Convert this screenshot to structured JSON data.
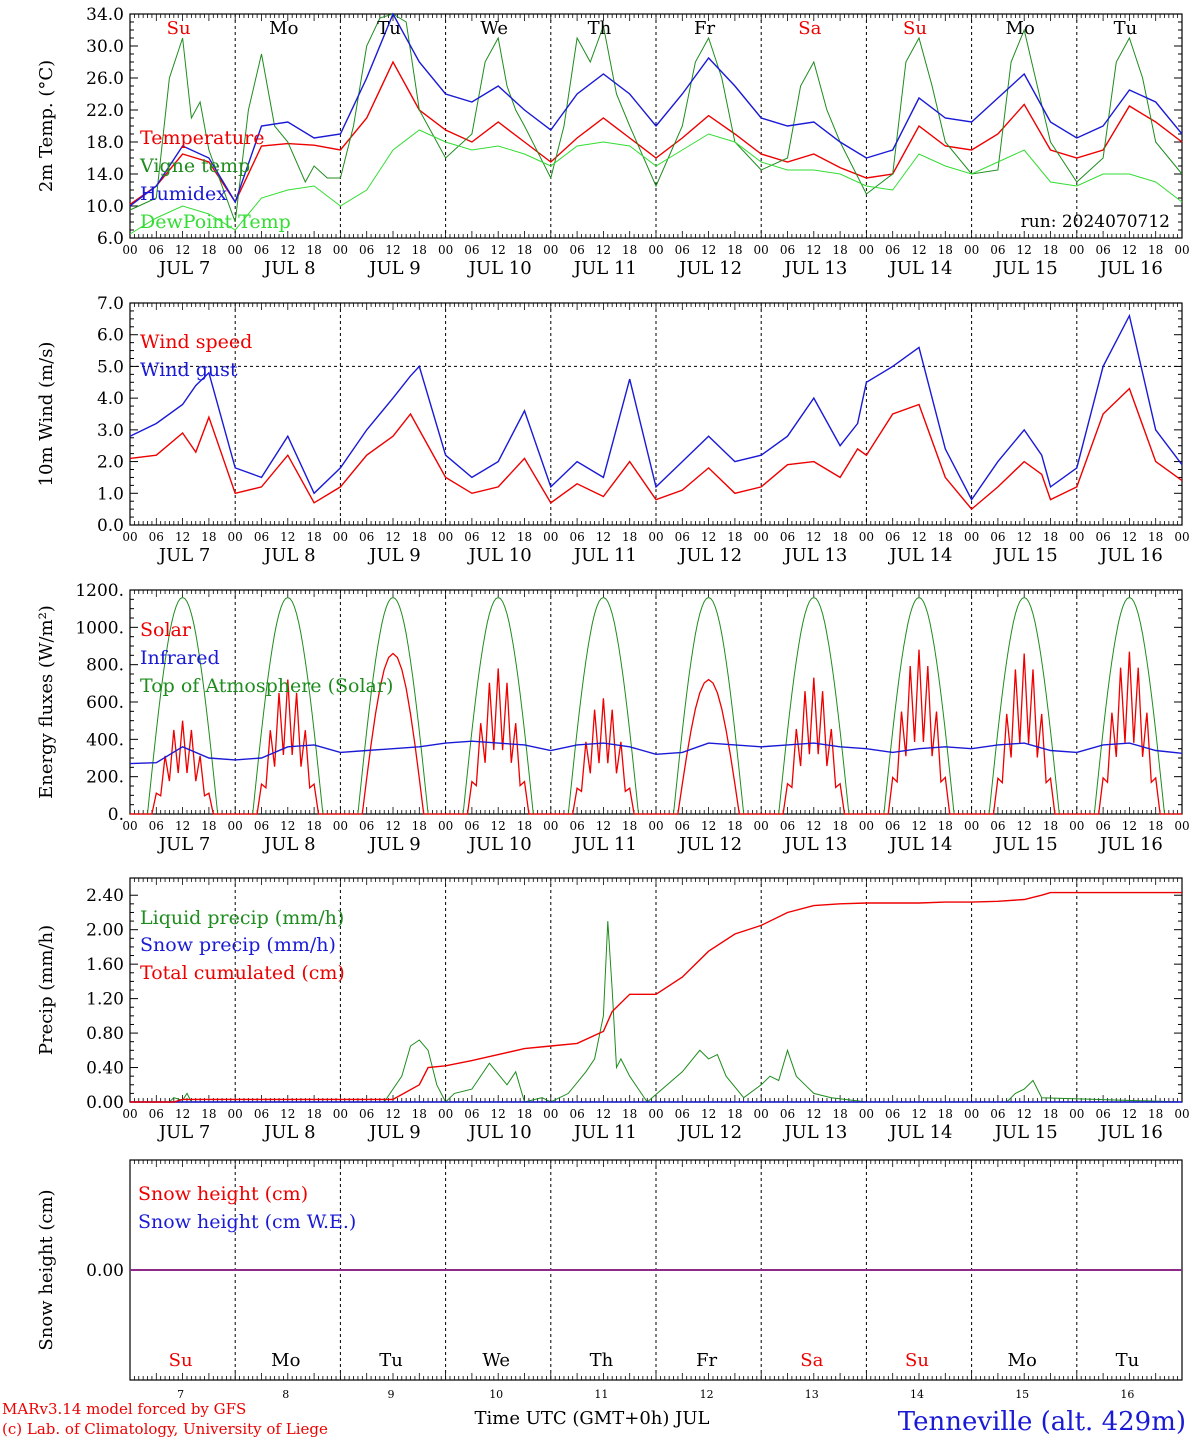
{
  "colors": {
    "red": "#ee0000",
    "darkgreen": "#1e8c1e",
    "blue": "#1a1ad6",
    "lightgreen": "#33dd33",
    "purple": "#8c2a8c",
    "black": "#000000"
  },
  "day_letters": [
    "Su",
    "Mo",
    "Tu",
    "We",
    "Th",
    "Fr",
    "Sa",
    "Su",
    "Mo",
    "Tu"
  ],
  "weekend_flags": [
    true,
    false,
    false,
    false,
    false,
    false,
    true,
    true,
    false,
    false
  ],
  "date_labels": [
    "JUL 7",
    "JUL 8",
    "JUL 9",
    "JUL 10",
    "JUL 11",
    "JUL 12",
    "JUL 13",
    "JUL 14",
    "JUL 15",
    "JUL 16"
  ],
  "hour_labels": [
    "00",
    "06",
    "12",
    "18"
  ],
  "day_numbers": [
    "7",
    "8",
    "9",
    "10",
    "11",
    "12",
    "13",
    "14",
    "15",
    "16"
  ],
  "footer": {
    "credit_line1": "MARv3.14 model forced by GFS",
    "credit_line2": "(c) Lab. of Climatology, University of Liege",
    "xlabel": "Time UTC (GMT+0h) JUL",
    "station": "Tenneville (alt. 429m)"
  },
  "chart_data": [
    {
      "type": "line",
      "ylabel": "2m Temp. (°C)",
      "ylim": [
        6,
        34
      ],
      "yticks": [
        "34.0",
        "30.0",
        "26.0",
        "22.0",
        "18.0",
        "14.0",
        "10.0",
        "6.0"
      ],
      "run_label": "run: 2024070712",
      "legend": [
        "Temperature",
        "Vigne temp",
        "Humidex",
        "DewPoint Temp"
      ],
      "x_unit": "hours since JUL 7 00 UTC",
      "series": [
        {
          "name": "Temperature",
          "color": "red",
          "x": [
            0,
            6,
            12,
            18,
            24,
            30,
            36,
            42,
            48,
            54,
            60,
            66,
            72,
            78,
            84,
            90,
            96,
            102,
            108,
            114,
            120,
            126,
            132,
            138,
            144,
            150,
            156,
            162,
            168,
            174,
            180,
            186,
            192,
            198,
            204,
            210,
            216,
            222,
            228,
            234,
            240
          ],
          "y": [
            10.2,
            12.5,
            16.5,
            15.5,
            10.5,
            17.5,
            17.8,
            17.6,
            17.0,
            21.0,
            28.0,
            22.0,
            19.5,
            18.0,
            20.5,
            18.0,
            15.5,
            18.5,
            21.0,
            18.5,
            16.0,
            18.5,
            21.3,
            19.0,
            16.5,
            15.5,
            16.5,
            14.8,
            13.5,
            14.0,
            20.0,
            17.5,
            17.0,
            19.0,
            22.7,
            17.0,
            16.0,
            17.0,
            22.5,
            20.5,
            18.0
          ]
        },
        {
          "name": "Vigne temp",
          "color": "darkgreen",
          "x": [
            0,
            6,
            9,
            12,
            14,
            16,
            18,
            24,
            27,
            30,
            33,
            36,
            40,
            42,
            45,
            48,
            51,
            54,
            57,
            60,
            63,
            66,
            72,
            78,
            81,
            84,
            86,
            88,
            90,
            96,
            99,
            102,
            105,
            108,
            111,
            114,
            120,
            126,
            129,
            132,
            135,
            138,
            144,
            150,
            153,
            156,
            159,
            162,
            168,
            174,
            177,
            180,
            183,
            186,
            192,
            198,
            201,
            204,
            207,
            210,
            216,
            222,
            225,
            228,
            231,
            234,
            240
          ],
          "y": [
            9.5,
            11.0,
            26.0,
            31.0,
            21.0,
            23.0,
            17.0,
            8.0,
            22.0,
            29.0,
            20.0,
            18.0,
            13.0,
            15.0,
            13.5,
            13.5,
            20.0,
            30.0,
            33.5,
            34.0,
            33.0,
            22.0,
            16.0,
            19.0,
            28.0,
            31.0,
            25.0,
            22.0,
            20.0,
            13.5,
            20.0,
            31.0,
            28.0,
            32.5,
            24.0,
            20.0,
            12.5,
            20.0,
            28.0,
            31.0,
            26.0,
            18.0,
            14.5,
            16.0,
            25.0,
            28.0,
            22.0,
            18.0,
            11.5,
            14.0,
            28.0,
            31.0,
            25.0,
            18.0,
            14.0,
            14.5,
            28.0,
            32.0,
            25.0,
            18.0,
            13.0,
            16.0,
            28.0,
            31.0,
            26.0,
            18.0,
            14.0
          ]
        },
        {
          "name": "Humidex",
          "color": "blue",
          "x": [
            0,
            6,
            12,
            18,
            24,
            30,
            36,
            42,
            48,
            54,
            60,
            66,
            72,
            78,
            84,
            90,
            96,
            102,
            108,
            114,
            120,
            126,
            132,
            138,
            144,
            150,
            156,
            162,
            168,
            174,
            180,
            186,
            192,
            198,
            204,
            210,
            216,
            222,
            228,
            234,
            240
          ],
          "y": [
            10.0,
            12.5,
            17.5,
            16.0,
            10.5,
            20.0,
            20.5,
            18.5,
            19.0,
            26.0,
            34.0,
            28.0,
            24.0,
            23.0,
            25.0,
            22.0,
            19.5,
            24.0,
            26.5,
            24.0,
            20.0,
            24.0,
            28.5,
            25.0,
            21.0,
            20.0,
            20.5,
            18.0,
            16.0,
            17.0,
            23.5,
            21.0,
            20.5,
            23.5,
            26.5,
            20.5,
            18.5,
            20.0,
            24.5,
            23.0,
            19.0
          ]
        },
        {
          "name": "DewPoint Temp",
          "color": "lightgreen",
          "x": [
            0,
            6,
            12,
            18,
            24,
            30,
            36,
            42,
            48,
            54,
            60,
            66,
            72,
            78,
            84,
            90,
            96,
            102,
            108,
            114,
            120,
            126,
            132,
            138,
            144,
            150,
            156,
            162,
            168,
            174,
            180,
            186,
            192,
            198,
            204,
            210,
            216,
            222,
            228,
            234,
            240
          ],
          "y": [
            6.5,
            8.5,
            10.0,
            9.0,
            7.0,
            11.0,
            12.0,
            12.5,
            10.0,
            12.0,
            17.0,
            19.5,
            18.0,
            17.0,
            17.5,
            16.5,
            15.0,
            17.5,
            18.0,
            17.5,
            15.0,
            17.0,
            19.0,
            18.0,
            15.5,
            14.5,
            14.5,
            14.0,
            12.5,
            12.0,
            16.5,
            15.0,
            14.0,
            15.5,
            17.0,
            13.0,
            12.5,
            14.0,
            14.0,
            13.0,
            10.5
          ]
        }
      ]
    },
    {
      "type": "line",
      "ylabel": "10m Wind (m/s)",
      "ylim": [
        0,
        7
      ],
      "yticks": [
        "7.0",
        "6.0",
        "5.0",
        "4.0",
        "3.0",
        "2.0",
        "1.0",
        "0.0"
      ],
      "ref_line": 5,
      "legend": [
        "Wind speed",
        "Wind gust"
      ],
      "x_unit": "hours since JUL 7 00 UTC",
      "series": [
        {
          "name": "Wind speed",
          "color": "red",
          "x": [
            0,
            6,
            12,
            15,
            18,
            24,
            30,
            36,
            42,
            48,
            54,
            60,
            64,
            66,
            72,
            78,
            84,
            90,
            96,
            102,
            108,
            114,
            120,
            126,
            132,
            138,
            144,
            150,
            156,
            162,
            166,
            168,
            174,
            180,
            186,
            192,
            198,
            204,
            208,
            210,
            216,
            222,
            228,
            234,
            240
          ],
          "y": [
            2.1,
            2.2,
            2.9,
            2.3,
            3.4,
            1.0,
            1.2,
            2.2,
            0.7,
            1.2,
            2.2,
            2.8,
            3.5,
            3.0,
            1.5,
            1.0,
            1.2,
            2.1,
            0.7,
            1.3,
            0.9,
            2.0,
            0.8,
            1.1,
            1.8,
            1.0,
            1.2,
            1.9,
            2.0,
            1.5,
            2.4,
            2.2,
            3.5,
            3.8,
            1.5,
            0.5,
            1.2,
            2.0,
            1.6,
            0.8,
            1.2,
            3.5,
            4.3,
            2.0,
            1.4
          ]
        },
        {
          "name": "Wind gust",
          "color": "blue",
          "x": [
            0,
            6,
            12,
            15,
            18,
            24,
            30,
            36,
            42,
            48,
            54,
            60,
            64,
            66,
            72,
            78,
            84,
            90,
            96,
            102,
            108,
            114,
            120,
            126,
            132,
            138,
            144,
            150,
            156,
            162,
            166,
            168,
            174,
            180,
            186,
            192,
            198,
            204,
            208,
            210,
            216,
            222,
            228,
            234,
            240
          ],
          "y": [
            2.8,
            3.2,
            3.8,
            4.4,
            4.8,
            1.8,
            1.5,
            2.8,
            1.0,
            1.8,
            3.0,
            4.0,
            4.7,
            5.0,
            2.2,
            1.5,
            2.0,
            3.6,
            1.2,
            2.0,
            1.5,
            4.6,
            1.2,
            2.0,
            2.8,
            2.0,
            2.2,
            2.8,
            4.0,
            2.5,
            3.2,
            4.5,
            5.0,
            5.6,
            2.4,
            0.8,
            2.0,
            3.0,
            2.2,
            1.2,
            1.8,
            5.0,
            6.6,
            3.0,
            1.9
          ]
        }
      ]
    },
    {
      "type": "line",
      "ylabel": "Energy fluxes (W/m²)",
      "ylim": [
        0,
        1200
      ],
      "yticks": [
        "1200.",
        "1000.",
        "800.",
        "600.",
        "400.",
        "200.",
        "0."
      ],
      "legend": [
        "Solar",
        "Infrared",
        "Top of Atmosphere (Solar)"
      ],
      "x_unit": "hours since JUL 7 00 UTC",
      "toa_peak": 1160,
      "solar_peaks": [
        500,
        720,
        860,
        780,
        620,
        720,
        730,
        880,
        860,
        870
      ],
      "series": [
        {
          "name": "Infrared",
          "color": "blue",
          "x": [
            0,
            6,
            12,
            18,
            24,
            30,
            36,
            42,
            48,
            54,
            60,
            66,
            72,
            78,
            84,
            90,
            96,
            102,
            108,
            114,
            120,
            126,
            132,
            138,
            144,
            150,
            156,
            162,
            168,
            174,
            180,
            186,
            192,
            198,
            204,
            210,
            216,
            222,
            228,
            234,
            240
          ],
          "y": [
            270,
            275,
            360,
            300,
            290,
            300,
            360,
            370,
            330,
            340,
            350,
            360,
            380,
            390,
            380,
            370,
            340,
            370,
            380,
            360,
            320,
            330,
            380,
            370,
            360,
            370,
            380,
            360,
            350,
            330,
            350,
            360,
            350,
            370,
            380,
            340,
            330,
            370,
            380,
            340,
            325
          ]
        }
      ]
    },
    {
      "type": "line",
      "ylabel": "Precip (mm/h)",
      "ylim": [
        0,
        2.6
      ],
      "yticks": [
        "2.40",
        "2.00",
        "1.60",
        "1.20",
        "0.80",
        "0.40",
        "0.00"
      ],
      "legend": [
        "Liquid precip (mm/h)",
        "Snow precip (mm/h)",
        "Total cumulated (cm)"
      ],
      "x_unit": "hours since JUL 7 00 UTC",
      "series": [
        {
          "name": "Liquid precip (mm/h)",
          "color": "darkgreen",
          "x": [
            0,
            9,
            10,
            12,
            13,
            14,
            58,
            62,
            64,
            66,
            68,
            70,
            72,
            74,
            78,
            82,
            86,
            88,
            90,
            94,
            96,
            100,
            104,
            106,
            108,
            109,
            110,
            111,
            112,
            114,
            118,
            126,
            130,
            132,
            134,
            136,
            140,
            144,
            146,
            148,
            150,
            152,
            154,
            156,
            160,
            168,
            200,
            202,
            204,
            206,
            208,
            240
          ],
          "y": [
            0,
            0,
            0.05,
            0.02,
            0.1,
            0,
            0,
            0.3,
            0.65,
            0.72,
            0.6,
            0.2,
            0,
            0.1,
            0.15,
            0.45,
            0.2,
            0.35,
            0,
            0.05,
            0,
            0.1,
            0.35,
            0.5,
            1.0,
            2.1,
            1.3,
            0.4,
            0.5,
            0.3,
            0,
            0.35,
            0.6,
            0.5,
            0.55,
            0.3,
            0.05,
            0.2,
            0.3,
            0.25,
            0.6,
            0.3,
            0.2,
            0.1,
            0.05,
            0,
            0,
            0.1,
            0.15,
            0.25,
            0.05,
            0
          ]
        },
        {
          "name": "Snow precip (mm/h)",
          "color": "blue",
          "x": [
            0,
            240
          ],
          "y": [
            0,
            0
          ]
        },
        {
          "name": "Total cumulated (cm)",
          "color": "red",
          "x": [
            0,
            10,
            12,
            60,
            66,
            68,
            72,
            78,
            84,
            90,
            96,
            102,
            108,
            110,
            114,
            120,
            126,
            132,
            138,
            144,
            150,
            156,
            162,
            168,
            174,
            180,
            186,
            192,
            198,
            204,
            208,
            210,
            216,
            222,
            228,
            240
          ],
          "y": [
            0,
            0,
            0.03,
            0.03,
            0.2,
            0.4,
            0.42,
            0.48,
            0.55,
            0.62,
            0.65,
            0.68,
            0.82,
            1.05,
            1.25,
            1.25,
            1.45,
            1.75,
            1.95,
            2.05,
            2.2,
            2.28,
            2.3,
            2.31,
            2.31,
            2.31,
            2.32,
            2.32,
            2.33,
            2.35,
            2.4,
            2.43,
            2.43,
            2.43,
            2.43,
            2.43
          ]
        }
      ]
    },
    {
      "type": "line",
      "ylabel": "Snow height (cm)",
      "ylim": [
        -1,
        1
      ],
      "yticks": [
        "0.00"
      ],
      "legend": [
        "Snow height (cm)",
        "Snow height (cm W.E.)"
      ],
      "x_unit": "hours since JUL 7 00 UTC",
      "series": [
        {
          "name": "Snow height (cm)",
          "color": "red",
          "x": [
            0,
            240
          ],
          "y": [
            0,
            0
          ]
        },
        {
          "name": "Snow height (cm W.E.)",
          "color": "blue",
          "x": [
            0,
            240
          ],
          "y": [
            0,
            0
          ]
        }
      ]
    }
  ]
}
